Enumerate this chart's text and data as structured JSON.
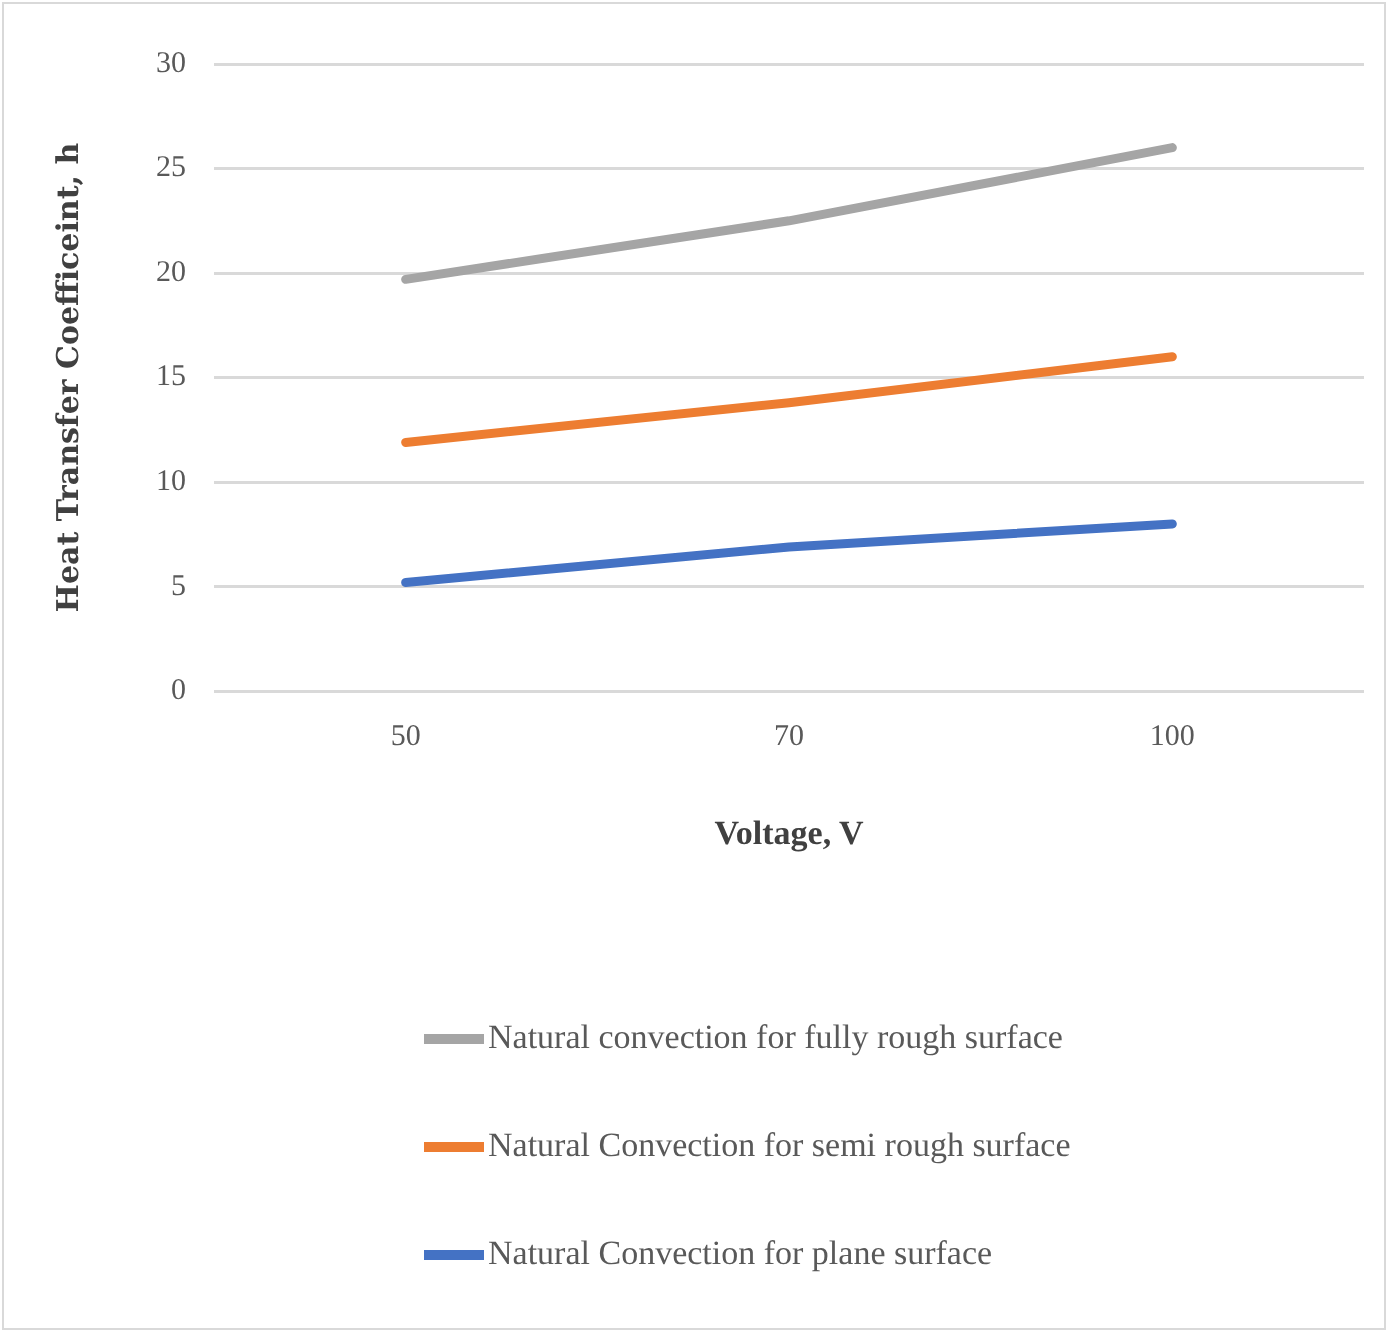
{
  "chart_data": {
    "type": "line",
    "xlabel": "Voltage, V",
    "ylabel": "Heat Transfer Coefficeint, h",
    "categories": [
      "50",
      "70",
      "100"
    ],
    "series": [
      {
        "name": "Natural convection for fully rough surface",
        "color": "#a5a5a5",
        "values": [
          19.7,
          22.5,
          26
        ]
      },
      {
        "name": "Natural Convection for semi rough surface",
        "color": "#ed7d31",
        "values": [
          11.9,
          13.8,
          16
        ]
      },
      {
        "name": "Natural Convection for plane surface",
        "color": "#4472c4",
        "values": [
          5.2,
          6.9,
          8
        ]
      }
    ],
    "ylim": [
      0,
      30
    ],
    "yticks": [
      0,
      5,
      10,
      15,
      20,
      25,
      30
    ],
    "grid": "y",
    "legend": "bottom",
    "marker": "none",
    "line_style": "solid"
  }
}
